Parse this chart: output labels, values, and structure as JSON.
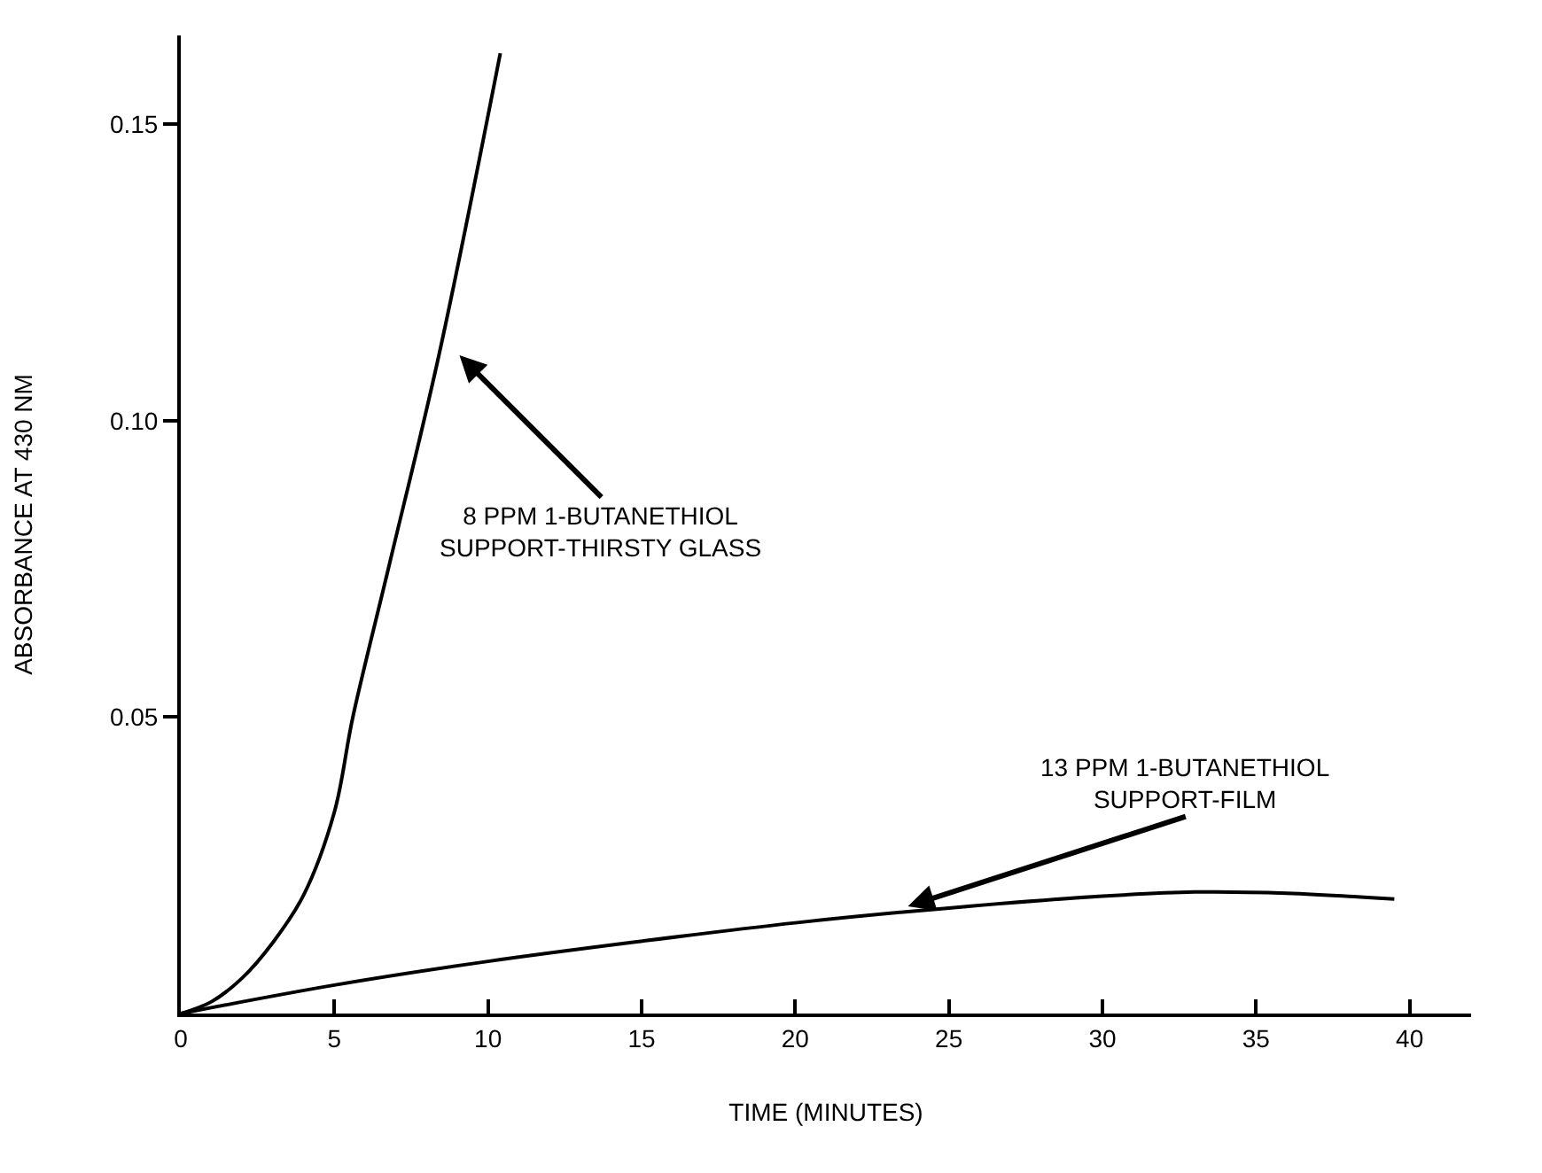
{
  "chart_data": {
    "type": "line",
    "xlabel": "TIME (MINUTES)",
    "ylabel": "ABSORBANCE AT 430 NM",
    "xlim": [
      0,
      42
    ],
    "xticks": [
      0,
      5,
      10,
      15,
      20,
      25,
      30,
      35,
      40
    ],
    "ylim": [
      0,
      0.165
    ],
    "yticks": [
      {
        "value": 0.05,
        "label": "0.05"
      },
      {
        "value": 0.1,
        "label": "0.10"
      },
      {
        "value": 0.15,
        "label": "0.15"
      }
    ],
    "marker": "none",
    "line_style": "solid",
    "series": [
      {
        "color": "#000000",
        "x": [
          0,
          1,
          2,
          3,
          4,
          5,
          5.6,
          6.8,
          8.4,
          10.4
        ],
        "values": [
          0,
          0.002,
          0.006,
          0.012,
          0.02,
          0.034,
          0.05,
          0.076,
          0.111,
          0.162
        ]
      },
      {
        "color": "#000000",
        "x": [
          0,
          5,
          10,
          15,
          20,
          25,
          30,
          33,
          36,
          39.5
        ],
        "values": [
          0,
          0.0048,
          0.0088,
          0.0122,
          0.0153,
          0.0178,
          0.0198,
          0.0205,
          0.0203,
          0.0193
        ]
      }
    ],
    "annotations": [
      {
        "text": "8 PPM 1-BUTANETHIOL\nSUPPORT-THIRSTY GLASS",
        "x": 8.5,
        "y": 0.114
      },
      {
        "text": "13 PPM 1-BUTANETHIOL\nSUPPORT-FILM",
        "x": 22.9,
        "y": 0.0168
      }
    ]
  }
}
